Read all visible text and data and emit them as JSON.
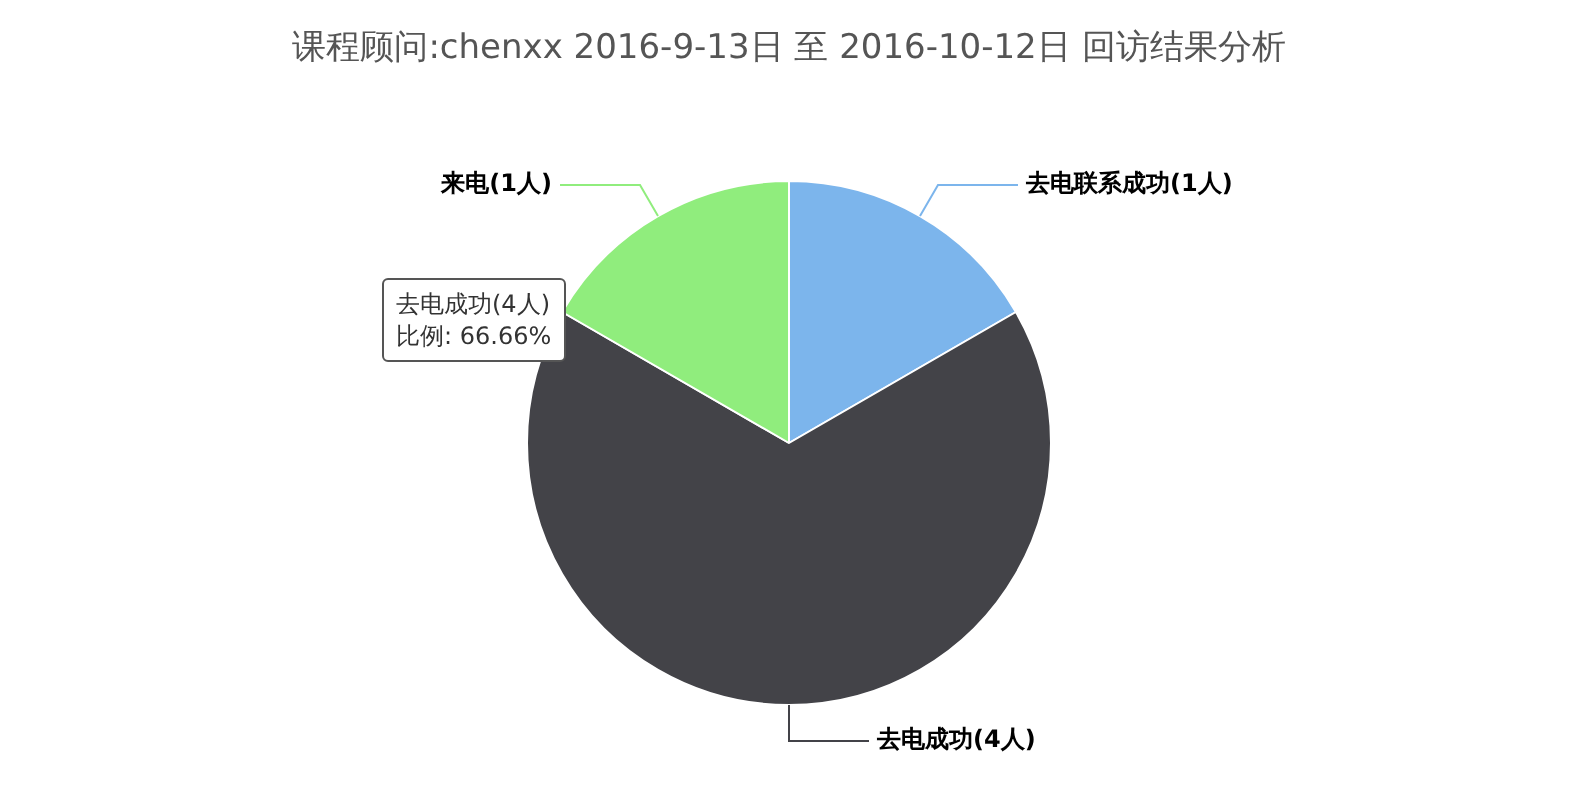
{
  "chart_data": {
    "type": "pie",
    "title": "课程顾问:chenxx 2016-9-13日 至 2016-10-12日 回访结果分析",
    "categories": [
      "去电联系成功(1人)",
      "去电成功(4人)",
      "来电(1人)"
    ],
    "values": [
      1,
      4,
      1
    ],
    "colors": [
      "#7cb5ec",
      "#434348",
      "#90ed7d"
    ],
    "annotations": [
      "去电成功(4人)",
      "比例: 66.66%"
    ],
    "legend": false
  }
}
